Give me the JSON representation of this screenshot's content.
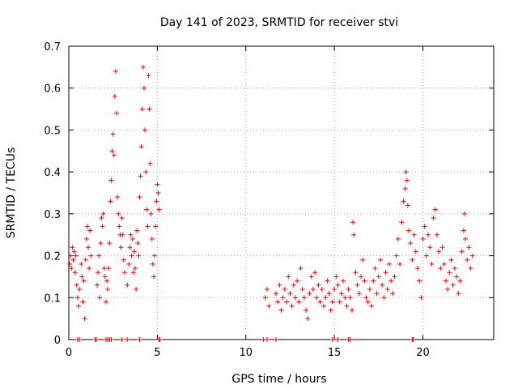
{
  "chart_data": {
    "type": "scatter",
    "title": "Day 141 of 2023, SRMTID for receiver stvi",
    "xlabel": "GPS time / hours",
    "ylabel": "SRMTID / TECUs",
    "xlim": [
      0,
      24
    ],
    "ylim": [
      0,
      0.7
    ],
    "x_ticks": [
      "0",
      "5",
      "10",
      "15",
      "20"
    ],
    "x_tick_values": [
      0,
      5,
      10,
      15,
      20
    ],
    "y_ticks": [
      "0",
      "0.1",
      "0.2",
      "0.3",
      "0.4",
      "0.5",
      "0.6",
      "0.7"
    ],
    "y_tick_values": [
      0,
      0.1,
      0.2,
      0.3,
      0.4,
      0.5,
      0.6,
      0.7
    ],
    "grid": true,
    "marker": "+",
    "series_color": "#ff0000",
    "series": [
      {
        "name": "SRMTID",
        "points": [
          [
            0.05,
            0.18
          ],
          [
            0.1,
            0.2
          ],
          [
            0.15,
            0.17
          ],
          [
            0.2,
            0.22
          ],
          [
            0.25,
            0.19
          ],
          [
            0.3,
            0.21
          ],
          [
            0.35,
            0.16
          ],
          [
            0.4,
            0.2
          ],
          [
            0.45,
            0.13
          ],
          [
            0.5,
            0.1
          ],
          [
            0.55,
            0.08
          ],
          [
            0.6,
            0.12
          ],
          [
            0.7,
            0.18
          ],
          [
            0.75,
            0.15
          ],
          [
            0.8,
            0.09
          ],
          [
            0.85,
            0.14
          ],
          [
            0.9,
            0.05
          ],
          [
            0.95,
            0.19
          ],
          [
            1.0,
            0.24
          ],
          [
            1.05,
            0.27
          ],
          [
            1.1,
            0.22
          ],
          [
            1.15,
            0.17
          ],
          [
            1.2,
            0.26
          ],
          [
            1.25,
            0.2
          ],
          [
            1.6,
            0.13
          ],
          [
            1.65,
            0.16
          ],
          [
            1.7,
            0.2
          ],
          [
            1.75,
            0.1
          ],
          [
            1.8,
            0.23
          ],
          [
            1.85,
            0.29
          ],
          [
            1.9,
            0.27
          ],
          [
            1.95,
            0.3
          ],
          [
            2.0,
            0.17
          ],
          [
            2.05,
            0.15
          ],
          [
            2.1,
            0.09
          ],
          [
            2.15,
            0.14
          ],
          [
            2.2,
            0.12
          ],
          [
            2.25,
            0.17
          ],
          [
            2.3,
            0.23
          ],
          [
            2.35,
            0.33
          ],
          [
            2.4,
            0.38
          ],
          [
            2.45,
            0.45
          ],
          [
            2.5,
            0.49
          ],
          [
            2.55,
            0.44
          ],
          [
            2.6,
            0.58
          ],
          [
            2.65,
            0.64
          ],
          [
            2.7,
            0.54
          ],
          [
            2.75,
            0.34
          ],
          [
            2.8,
            0.3
          ],
          [
            2.85,
            0.27
          ],
          [
            2.9,
            0.25
          ],
          [
            2.95,
            0.22
          ],
          [
            3.0,
            0.29
          ],
          [
            3.05,
            0.25
          ],
          [
            3.1,
            0.19
          ],
          [
            3.15,
            0.16
          ],
          [
            3.3,
            0.13
          ],
          [
            3.4,
            0.18
          ],
          [
            3.45,
            0.22
          ],
          [
            3.5,
            0.25
          ],
          [
            3.55,
            0.2
          ],
          [
            3.6,
            0.24
          ],
          [
            3.65,
            0.16
          ],
          [
            3.7,
            0.21
          ],
          [
            3.75,
            0.17
          ],
          [
            3.8,
            0.12
          ],
          [
            3.85,
            0.26
          ],
          [
            3.9,
            0.23
          ],
          [
            3.95,
            0.2
          ],
          [
            4.0,
            0.34
          ],
          [
            4.05,
            0.39
          ],
          [
            4.1,
            0.46
          ],
          [
            4.15,
            0.55
          ],
          [
            4.2,
            0.65
          ],
          [
            4.25,
            0.6
          ],
          [
            4.3,
            0.5
          ],
          [
            4.35,
            0.4
          ],
          [
            4.4,
            0.31
          ],
          [
            4.45,
            0.27
          ],
          [
            4.5,
            0.63
          ],
          [
            4.55,
            0.55
          ],
          [
            4.6,
            0.42
          ],
          [
            4.65,
            0.3
          ],
          [
            4.7,
            0.24
          ],
          [
            4.75,
            0.18
          ],
          [
            4.8,
            0.15
          ],
          [
            4.85,
            0.2
          ],
          [
            4.9,
            0.27
          ],
          [
            4.95,
            0.33
          ],
          [
            5.0,
            0.37
          ],
          [
            5.05,
            0.35
          ],
          [
            5.1,
            0.31
          ],
          [
            11.1,
            0.1
          ],
          [
            11.2,
            0.12
          ],
          [
            11.3,
            0.08
          ],
          [
            11.7,
            0.11
          ],
          [
            11.8,
            0.09
          ],
          [
            11.9,
            0.13
          ],
          [
            12.0,
            0.07
          ],
          [
            12.1,
            0.1
          ],
          [
            12.2,
            0.12
          ],
          [
            12.3,
            0.09
          ],
          [
            12.4,
            0.15
          ],
          [
            12.5,
            0.11
          ],
          [
            12.6,
            0.08
          ],
          [
            12.7,
            0.13
          ],
          [
            12.8,
            0.1
          ],
          [
            12.9,
            0.14
          ],
          [
            13.0,
            0.09
          ],
          [
            13.1,
            0.17
          ],
          [
            13.2,
            0.12
          ],
          [
            13.3,
            0.1
          ],
          [
            13.4,
            0.07
          ],
          [
            13.5,
            0.05
          ],
          [
            13.6,
            0.11
          ],
          [
            13.7,
            0.15
          ],
          [
            13.8,
            0.12
          ],
          [
            13.9,
            0.16
          ],
          [
            14.0,
            0.1
          ],
          [
            14.1,
            0.13
          ],
          [
            14.2,
            0.09
          ],
          [
            14.3,
            0.12
          ],
          [
            14.4,
            0.08
          ],
          [
            14.5,
            0.1
          ],
          [
            14.6,
            0.14
          ],
          [
            14.7,
            0.11
          ],
          [
            14.8,
            0.07
          ],
          [
            14.9,
            0.09
          ],
          [
            15.0,
            0.12
          ],
          [
            15.1,
            0.15
          ],
          [
            15.2,
            0.13
          ],
          [
            15.3,
            0.09
          ],
          [
            15.4,
            0.11
          ],
          [
            15.5,
            0.14
          ],
          [
            15.6,
            0.1
          ],
          [
            15.7,
            0.08
          ],
          [
            15.8,
            0.12
          ],
          [
            15.9,
            0.1
          ],
          [
            16.0,
            0.07
          ],
          [
            16.05,
            0.28
          ],
          [
            16.1,
            0.25
          ],
          [
            16.2,
            0.16
          ],
          [
            16.3,
            0.13
          ],
          [
            16.4,
            0.11
          ],
          [
            16.5,
            0.15
          ],
          [
            16.6,
            0.19
          ],
          [
            16.7,
            0.14
          ],
          [
            16.8,
            0.1
          ],
          [
            16.9,
            0.09
          ],
          [
            17.0,
            0.12
          ],
          [
            17.1,
            0.08
          ],
          [
            17.2,
            0.14
          ],
          [
            17.3,
            0.17
          ],
          [
            17.4,
            0.11
          ],
          [
            17.5,
            0.15
          ],
          [
            17.6,
            0.19
          ],
          [
            17.7,
            0.13
          ],
          [
            17.8,
            0.1
          ],
          [
            17.9,
            0.16
          ],
          [
            18.0,
            0.12
          ],
          [
            18.1,
            0.18
          ],
          [
            18.2,
            0.14
          ],
          [
            18.3,
            0.11
          ],
          [
            18.4,
            0.15
          ],
          [
            18.5,
            0.2
          ],
          [
            18.6,
            0.24
          ],
          [
            18.7,
            0.18
          ],
          [
            18.8,
            0.28
          ],
          [
            18.9,
            0.33
          ],
          [
            19.0,
            0.36
          ],
          [
            19.05,
            0.4
          ],
          [
            19.1,
            0.38
          ],
          [
            19.15,
            0.32
          ],
          [
            19.2,
            0.26
          ],
          [
            19.3,
            0.23
          ],
          [
            19.4,
            0.19
          ],
          [
            19.5,
            0.25
          ],
          [
            19.6,
            0.21
          ],
          [
            19.7,
            0.17
          ],
          [
            19.8,
            0.14
          ],
          [
            19.9,
            0.1
          ],
          [
            20.0,
            0.24
          ],
          [
            20.1,
            0.27
          ],
          [
            20.2,
            0.2
          ],
          [
            20.3,
            0.25
          ],
          [
            20.4,
            0.22
          ],
          [
            20.5,
            0.18
          ],
          [
            20.6,
            0.29
          ],
          [
            20.7,
            0.31
          ],
          [
            20.8,
            0.25
          ],
          [
            20.9,
            0.21
          ],
          [
            21.0,
            0.17
          ],
          [
            21.1,
            0.22
          ],
          [
            21.2,
            0.18
          ],
          [
            21.3,
            0.14
          ],
          [
            21.4,
            0.12
          ],
          [
            21.5,
            0.16
          ],
          [
            21.6,
            0.19
          ],
          [
            21.7,
            0.13
          ],
          [
            21.8,
            0.17
          ],
          [
            21.9,
            0.15
          ],
          [
            22.0,
            0.11
          ],
          [
            22.1,
            0.14
          ],
          [
            22.2,
            0.21
          ],
          [
            22.3,
            0.26
          ],
          [
            22.35,
            0.3
          ],
          [
            22.4,
            0.24
          ],
          [
            22.5,
            0.19
          ],
          [
            22.6,
            0.22
          ],
          [
            22.7,
            0.17
          ],
          [
            22.8,
            0.2
          ]
        ]
      }
    ],
    "zero_level_points": [
      0.5,
      0.6,
      1.5,
      1.55,
      2.1,
      2.2,
      2.3,
      2.4,
      3.0,
      3.3,
      4.0,
      5.1,
      5.15,
      11.0,
      11.2,
      11.7,
      14.9,
      15.2,
      15.8,
      15.9,
      19.4,
      19.45
    ]
  }
}
